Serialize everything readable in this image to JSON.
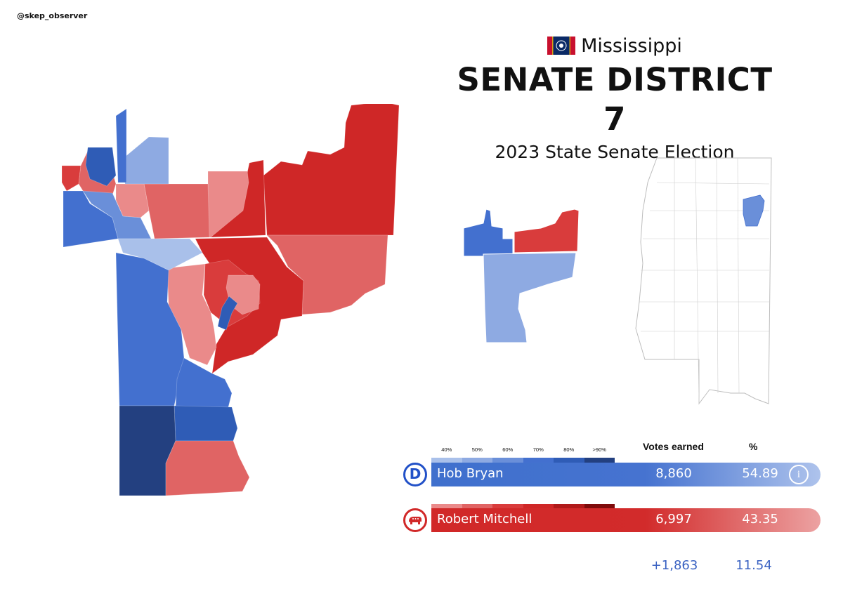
{
  "header": {
    "handle": "@skep_observer",
    "state": "Mississippi",
    "district_title": "SENATE DISTRICT 7",
    "election_subtitle": "2023 State Senate Election"
  },
  "colors": {
    "dem_scale": [
      "#a9c0ea",
      "#8eaae2",
      "#6a8fd9",
      "#4370cf",
      "#2f5cb6",
      "#234080"
    ],
    "rep_scale": [
      "#ea8a8a",
      "#e06464",
      "#d93c3c",
      "#cf2727",
      "#b01a1a",
      "#7e0b0b"
    ]
  },
  "legend": {
    "scale_labels": [
      "40%",
      "50%",
      "60%",
      "70%",
      "80%",
      ">90%"
    ],
    "votes_header": "Votes earned",
    "pct_header": "%"
  },
  "candidates": [
    {
      "party": "D",
      "icon": "democrat-icon",
      "name": "Hob Bryan",
      "votes": "8,860",
      "pct": "54.89"
    },
    {
      "party": "R",
      "icon": "republican-elephant-icon",
      "name": "Robert Mitchell",
      "votes": "6,997",
      "pct": "43.35"
    }
  ],
  "margin": {
    "votes": "+1,863",
    "pct": "11.54"
  },
  "dem_badge_letter": "D",
  "info_glyph": "i"
}
